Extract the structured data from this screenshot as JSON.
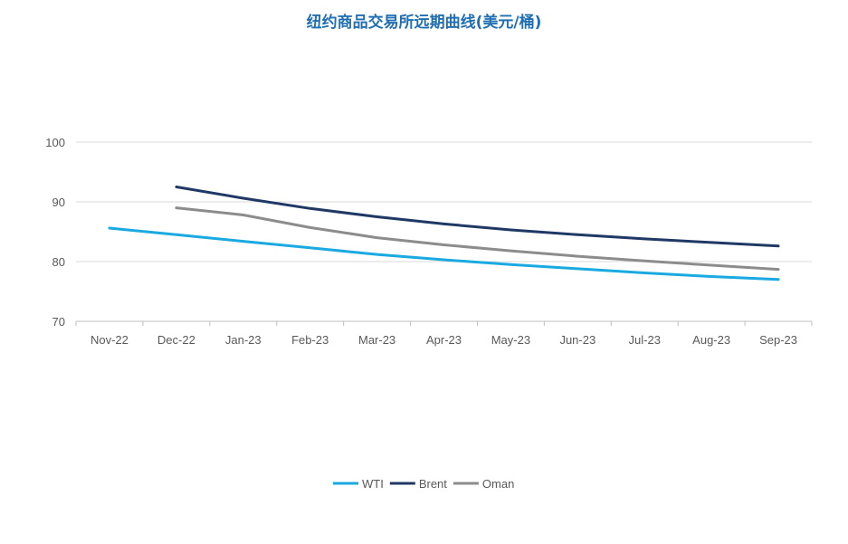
{
  "chart_data": {
    "type": "line",
    "title": "纽约商品交易所远期曲线(美元/桶)",
    "xlabel": "",
    "ylabel": "",
    "categories": [
      "Nov-22",
      "Dec-22",
      "Jan-23",
      "Feb-23",
      "Mar-23",
      "Apr-23",
      "May-23",
      "Jun-23",
      "Jul-23",
      "Aug-23",
      "Sep-23"
    ],
    "y_ticks": [
      "70",
      "80",
      "90",
      "100"
    ],
    "ylim": [
      70,
      100
    ],
    "grid": true,
    "legend_position": "bottom",
    "series": [
      {
        "name": "WTI",
        "color": "#1aa9e0",
        "values": [
          85.6,
          84.5,
          83.4,
          82.3,
          81.2,
          80.3,
          79.5,
          78.8,
          78.1,
          77.5,
          77.0
        ]
      },
      {
        "name": "Brent",
        "color": "#1f3864",
        "values": [
          null,
          92.5,
          90.6,
          88.9,
          87.5,
          86.3,
          85.3,
          84.5,
          83.8,
          83.2,
          82.6
        ]
      },
      {
        "name": "Oman",
        "color": "#8c8c8c",
        "values": [
          null,
          89.0,
          87.8,
          85.7,
          84.0,
          82.8,
          81.8,
          80.9,
          80.1,
          79.4,
          78.7
        ]
      }
    ]
  }
}
